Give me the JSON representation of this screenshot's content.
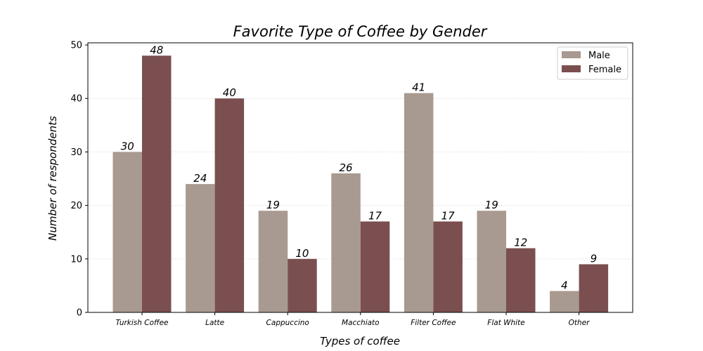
{
  "chart_data": {
    "type": "bar",
    "title": "Favorite Type of Coffee by Gender",
    "xlabel": "Types of coffee",
    "ylabel": "Number of respondents",
    "categories": [
      "Turkish Coffee",
      "Latte",
      "Cappuccino",
      "Macchiato",
      "Filter Coffee",
      "Flat White",
      "Other"
    ],
    "series": [
      {
        "name": "Male",
        "values": [
          30,
          24,
          19,
          26,
          41,
          19,
          4
        ],
        "color": "#a89a90"
      },
      {
        "name": "Female",
        "values": [
          48,
          40,
          10,
          17,
          17,
          12,
          9
        ],
        "color": "#7b4f4f"
      }
    ],
    "ylim": [
      0,
      50.4
    ],
    "yticks": [
      0,
      10,
      20,
      30,
      40,
      50
    ],
    "grid": "horizontal dotted",
    "legend": "top-right",
    "data_labels": true
  }
}
